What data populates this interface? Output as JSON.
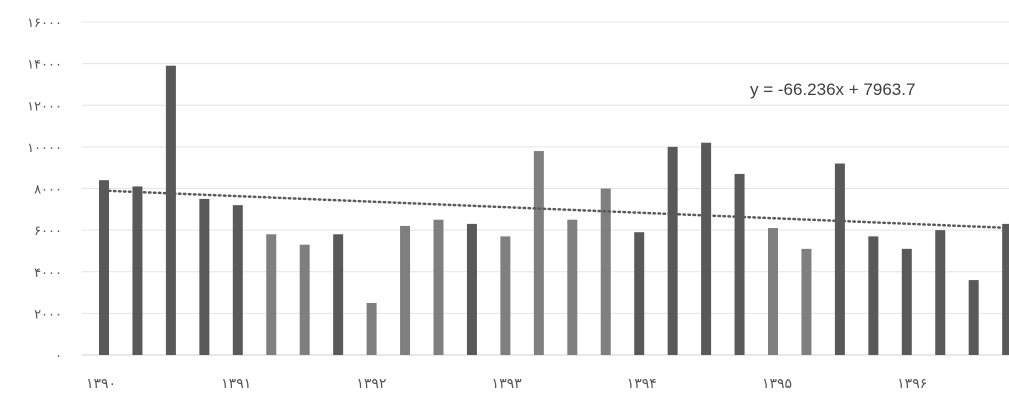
{
  "chart_data": {
    "type": "bar",
    "title": "",
    "xlabel": "",
    "ylabel": "",
    "ylim": [
      0,
      16000
    ],
    "yticks": [
      0,
      2000,
      4000,
      6000,
      8000,
      10000,
      12000,
      14000,
      16000
    ],
    "ytick_labels": [
      "۰",
      "۲۰۰۰",
      "۴۰۰۰",
      "۶۰۰۰",
      "۸۰۰۰",
      "۱۰۰۰۰",
      "۱۲۰۰۰",
      "۱۴۰۰۰",
      "۱۶۰۰۰"
    ],
    "xtick_labels": [
      "۱۳۹۰",
      "۱۳۹۱",
      "۱۳۹۲",
      "۱۳۹۳",
      "۱۳۹۴",
      "۱۳۹۵",
      "۱۳۹۶"
    ],
    "values": [
      8400,
      8100,
      13900,
      7500,
      7200,
      5800,
      5300,
      5800,
      2500,
      6200,
      6500,
      6300,
      5700,
      9800,
      6500,
      8000,
      5900,
      10000,
      10200,
      8700,
      6100,
      5100,
      9200,
      5700,
      5100,
      6000,
      3600,
      6300
    ],
    "bar_colors": [
      "#595959",
      "#595959",
      "#595959",
      "#595959",
      "#595959",
      "#7f7f7f",
      "#7f7f7f",
      "#595959",
      "#7f7f7f",
      "#7f7f7f",
      "#7f7f7f",
      "#595959",
      "#7f7f7f",
      "#7f7f7f",
      "#7f7f7f",
      "#7f7f7f",
      "#595959",
      "#595959",
      "#595959",
      "#595959",
      "#7f7f7f",
      "#7f7f7f",
      "#595959",
      "#595959",
      "#595959",
      "#595959",
      "#595959",
      "#595959"
    ],
    "trendline": {
      "slope": -66.236,
      "intercept": 7963.7,
      "style": "dotted"
    },
    "equation_label": "y = -66.236x + 7963.7",
    "grid": true,
    "legend": "none"
  }
}
